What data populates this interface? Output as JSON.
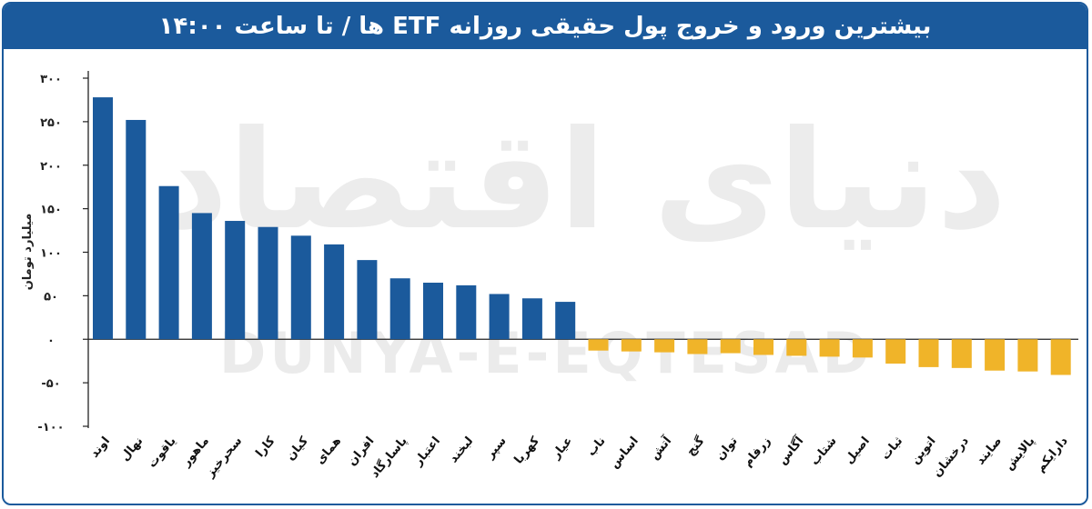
{
  "chart_data": {
    "type": "bar",
    "title": "بیشترین ورود و خروج پول حقیقی روزانه ETF ها / تا ساعت ۱۴:۰۰",
    "ylabel": "میلیارد تومان",
    "xlabel": "",
    "ylim": [
      -100,
      300
    ],
    "yticks": [
      300,
      250,
      200,
      150,
      100,
      50,
      0,
      -50,
      -100
    ],
    "ytick_labels": [
      "۳۰۰",
      "۲۵۰",
      "۲۰۰",
      "۱۵۰",
      "۱۰۰",
      "۵۰",
      "۰",
      "-۵۰",
      "-۱۰۰"
    ],
    "grid": false,
    "categories": [
      "اوند",
      "نهال",
      "یاقوت",
      "ماهور",
      "سحرخیز",
      "کارا",
      "کیان",
      "همای",
      "افران",
      "پاسارگاد",
      "اعتبار",
      "لبخند",
      "سپر",
      "کهربا",
      "عیار",
      "ناب",
      "اساس",
      "آتش",
      "گنج",
      "توان",
      "زرفام",
      "آگاس",
      "شتاب",
      "اصیل",
      "ثبات",
      "اتوین",
      "درخشان",
      "صایند",
      "پالایش",
      "دارایکم"
    ],
    "values": [
      278,
      252,
      176,
      145,
      136,
      129,
      119,
      109,
      91,
      70,
      65,
      62,
      52,
      47,
      43,
      -13,
      -14,
      -15,
      -17,
      -16,
      -18,
      -19,
      -20,
      -21,
      -28,
      -32,
      -33,
      -36,
      -37,
      -41
    ],
    "colors": {
      "positive": "#1b5a9c",
      "negative": "#f0b429"
    },
    "watermark": "DUNYA-E-EQTESAD",
    "watermark_logo": "دنیای اقتصاد"
  }
}
